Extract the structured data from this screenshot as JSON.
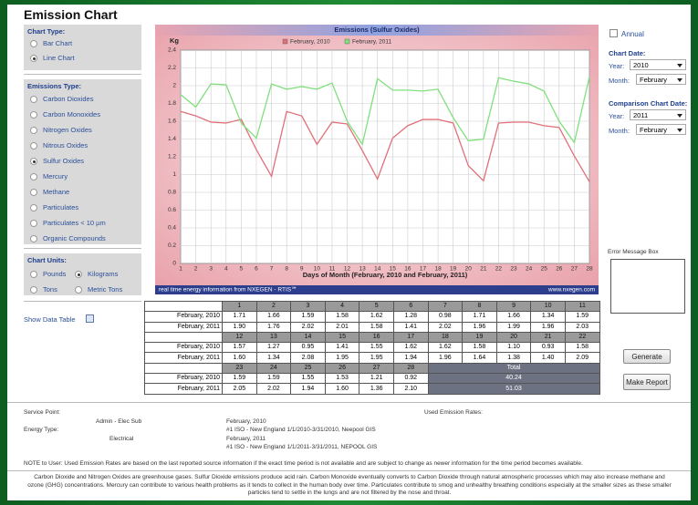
{
  "app": {
    "title": "Emission Chart"
  },
  "chart_type": {
    "label": "Chart Type:",
    "options": [
      "Bar Chart",
      "Line Chart"
    ],
    "selected": 1
  },
  "emissions_type": {
    "label": "Emissions Type:",
    "options": [
      "Carbon Dioxides",
      "Carbon Monoxides",
      "Nitrogen Oxides",
      "Nitrous Oxides",
      "Sulfur Oxides",
      "Mercury",
      "Methane",
      "Particulates",
      "Particulates < 10 µm",
      "Organic Compounds"
    ],
    "selected": 4
  },
  "chart_units": {
    "label": "Chart Units:",
    "options": [
      "Pounds",
      "Kilograms",
      "Tons",
      "Metric Tons"
    ],
    "selected": 1
  },
  "show_data_table": {
    "label": "Show Data Table",
    "checked": true
  },
  "annual": {
    "label": "Annual",
    "checked": false
  },
  "chart_date": {
    "label": "Chart Date:",
    "year_label": "Year:",
    "year": "2010",
    "month_label": "Month:",
    "month": "February"
  },
  "comparison_date": {
    "label": "Comparison Chart Date:",
    "year_label": "Year:",
    "year": "2011",
    "month_label": "Month:",
    "month": "February"
  },
  "error_box": {
    "label": "Error Message Box"
  },
  "buttons": [
    "Generate",
    "Make Report"
  ],
  "chart_data": {
    "type": "line",
    "title": "Emissions (Sulfur Oxides)",
    "y_label": "Kg",
    "x_label": "Days of Month (February, 2010 and February, 2011)",
    "x": [
      1,
      2,
      3,
      4,
      5,
      6,
      7,
      8,
      9,
      10,
      11,
      12,
      13,
      14,
      15,
      16,
      17,
      18,
      19,
      20,
      21,
      22,
      23,
      24,
      25,
      26,
      27,
      28
    ],
    "xlim": [
      1,
      28
    ],
    "xticks": [
      1,
      2,
      3,
      4,
      5,
      6,
      7,
      8,
      9,
      10,
      11,
      12,
      13,
      14,
      15,
      16,
      17,
      18,
      19,
      20,
      21,
      22,
      23,
      24,
      25,
      26,
      27,
      28
    ],
    "ylim": [
      0,
      2.4
    ],
    "yticks": [
      0,
      0.2,
      0.4,
      0.6,
      0.8,
      1,
      1.2,
      1.4,
      1.6,
      1.8,
      2,
      2.2,
      2.4
    ],
    "grid": true,
    "legend": "top",
    "series": [
      {
        "name": "February, 2010",
        "color": "#e0707a",
        "values": [
          1.71,
          1.66,
          1.59,
          1.58,
          1.62,
          1.28,
          0.98,
          1.71,
          1.66,
          1.34,
          1.59,
          1.57,
          1.27,
          0.95,
          1.41,
          1.55,
          1.62,
          1.62,
          1.58,
          1.1,
          0.93,
          1.58,
          1.59,
          1.59,
          1.55,
          1.53,
          1.21,
          0.92
        ],
        "value_labels": [
          "1.71",
          "1.66",
          "1.59",
          "1.58",
          "1.62",
          "1.28",
          "0.98",
          "1.71",
          "1.66",
          "1.34",
          "1.59",
          "1.57",
          "1.27",
          "0.95",
          "1.41",
          "1.55",
          "1.62",
          "1.62",
          "1.58",
          "1.10",
          "0.93",
          "1.58",
          "1.59",
          "1.59",
          "1.55",
          "1.53",
          "1.21",
          "0.92"
        ]
      },
      {
        "name": "February, 2011",
        "color": "#80e07c",
        "values": [
          1.9,
          1.76,
          2.02,
          2.01,
          1.58,
          1.41,
          2.02,
          1.96,
          1.99,
          1.96,
          2.03,
          1.6,
          1.34,
          2.08,
          1.95,
          1.95,
          1.94,
          1.96,
          1.64,
          1.38,
          1.4,
          2.09,
          2.05,
          2.02,
          1.94,
          1.6,
          1.36,
          2.1
        ],
        "value_labels": [
          "1.90",
          "1.76",
          "2.02",
          "2.01",
          "1.58",
          "1.41",
          "2.02",
          "1.96",
          "1.99",
          "1.96",
          "2.03",
          "1.60",
          "1.34",
          "2.08",
          "1.95",
          "1.95",
          "1.94",
          "1.96",
          "1.64",
          "1.38",
          "1.40",
          "2.09",
          "2.05",
          "2.02",
          "1.94",
          "1.60",
          "1.36",
          "2.10"
        ]
      }
    ],
    "footer_left": "real time energy information from NXEGEN - RTIS℠",
    "footer_right": "www.nxegen.com"
  },
  "data_table": {
    "total_label": "Total",
    "totals": [
      "40.24",
      "51.03"
    ]
  },
  "info": {
    "service_point_label": "Service Point:",
    "service_point": "Admin - Elec Sub",
    "energy_type_label": "Energy Type:",
    "energy_type": "Electrical",
    "used_rates_label": "Used Emission Rates:",
    "rates": [
      {
        "period": "February, 2010",
        "source": "#1 ISO - New England 1/1/2010-3/31/2010, Neepool GIS"
      },
      {
        "period": "February, 2011",
        "source": "#1 ISO - New England 1/1/2011-3/31/2011, NEPOOL GIS"
      }
    ]
  },
  "note": "NOTE to User: Used Emission Rates are based on the last reported source information if the exact time period is not available and are subject to change as newer information for the time period becomes available.",
  "footnote": "Carbon Dioxide and Nitrogen Oxides are greenhouse gases. Sulfur Dioxide emissions produce acid rain. Carbon Monoxide eventually converts to Carbon Dioxide through natural atmospheric processes which may also increase methane and ozone (GHG) concentrations. Mercury can contribute to various health problems as it tends to collect in the human body over time. Particulates contribute to smog and unhealthy breathing conditions especially at the smaller sizes as these smaller particles tend to settle in the lungs and are not filtered by the nose and throat."
}
